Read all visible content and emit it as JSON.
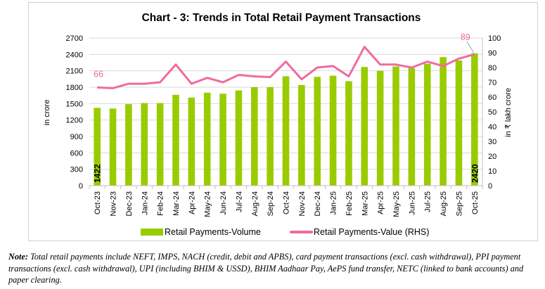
{
  "chart_data": {
    "type": "bar+line",
    "title": "Chart - 3: Trends in Total Retail Payment Transactions",
    "ylabel": "in crore",
    "y2label": "in ₹ lakh crore",
    "ylim": [
      0,
      2700
    ],
    "yticks": [
      0,
      300,
      600,
      900,
      1200,
      1500,
      1800,
      2100,
      2400,
      2700
    ],
    "y2lim": [
      0,
      100
    ],
    "y2ticks": [
      0,
      10,
      20,
      30,
      40,
      50,
      60,
      70,
      80,
      90,
      100
    ],
    "grid": true,
    "legend_position": "bottom",
    "categories": [
      "Oct-23",
      "Nov-23",
      "Dec-23",
      "Jan-24",
      "Feb-24",
      "Mar-24",
      "Apr-24",
      "May-24",
      "Jun-24",
      "Jul-24",
      "Aug-24",
      "Sep-24",
      "Oct-24",
      "Nov-24",
      "Dec-24",
      "Jan-25",
      "Feb-25",
      "Mar-25",
      "Apr-25",
      "May-25",
      "Jun-25",
      "Jul-25",
      "Aug-25",
      "Sep-25",
      "Oct-25"
    ],
    "series": [
      {
        "name": "Retail Payments-Volume",
        "type": "bar",
        "axis": "left",
        "color": "#99cc00",
        "values": [
          1422,
          1410,
          1490,
          1510,
          1510,
          1660,
          1610,
          1700,
          1680,
          1740,
          1800,
          1800,
          2000,
          1840,
          1990,
          2010,
          1910,
          2170,
          2100,
          2180,
          2150,
          2230,
          2350,
          2290,
          2420
        ],
        "data_labels": {
          "0": "1422",
          "24": "2420"
        }
      },
      {
        "name": "Retail Payments-Value (RHS)",
        "type": "line",
        "axis": "right",
        "color": "#f06ba0",
        "values": [
          66.5,
          66,
          69,
          69,
          70,
          82,
          69,
          73,
          70,
          75,
          74,
          73.5,
          84,
          72,
          80,
          81,
          74,
          94,
          82,
          82,
          80,
          84,
          81,
          86,
          89
        ],
        "data_labels": {
          "0": "66",
          "24": "89"
        }
      }
    ]
  },
  "note": {
    "label": "Note:",
    "text": " Total retail payments include NEFT, IMPS, NACH (credit, debit and APBS), card payment transactions (excl. cash withdrawal), PPI payment transactions (excl. cash withdrawal), UPI (including BHIM & USSD), BHIM Aadhaar Pay, AePS fund transfer, NETC (linked to bank accounts) and paper clearing."
  }
}
